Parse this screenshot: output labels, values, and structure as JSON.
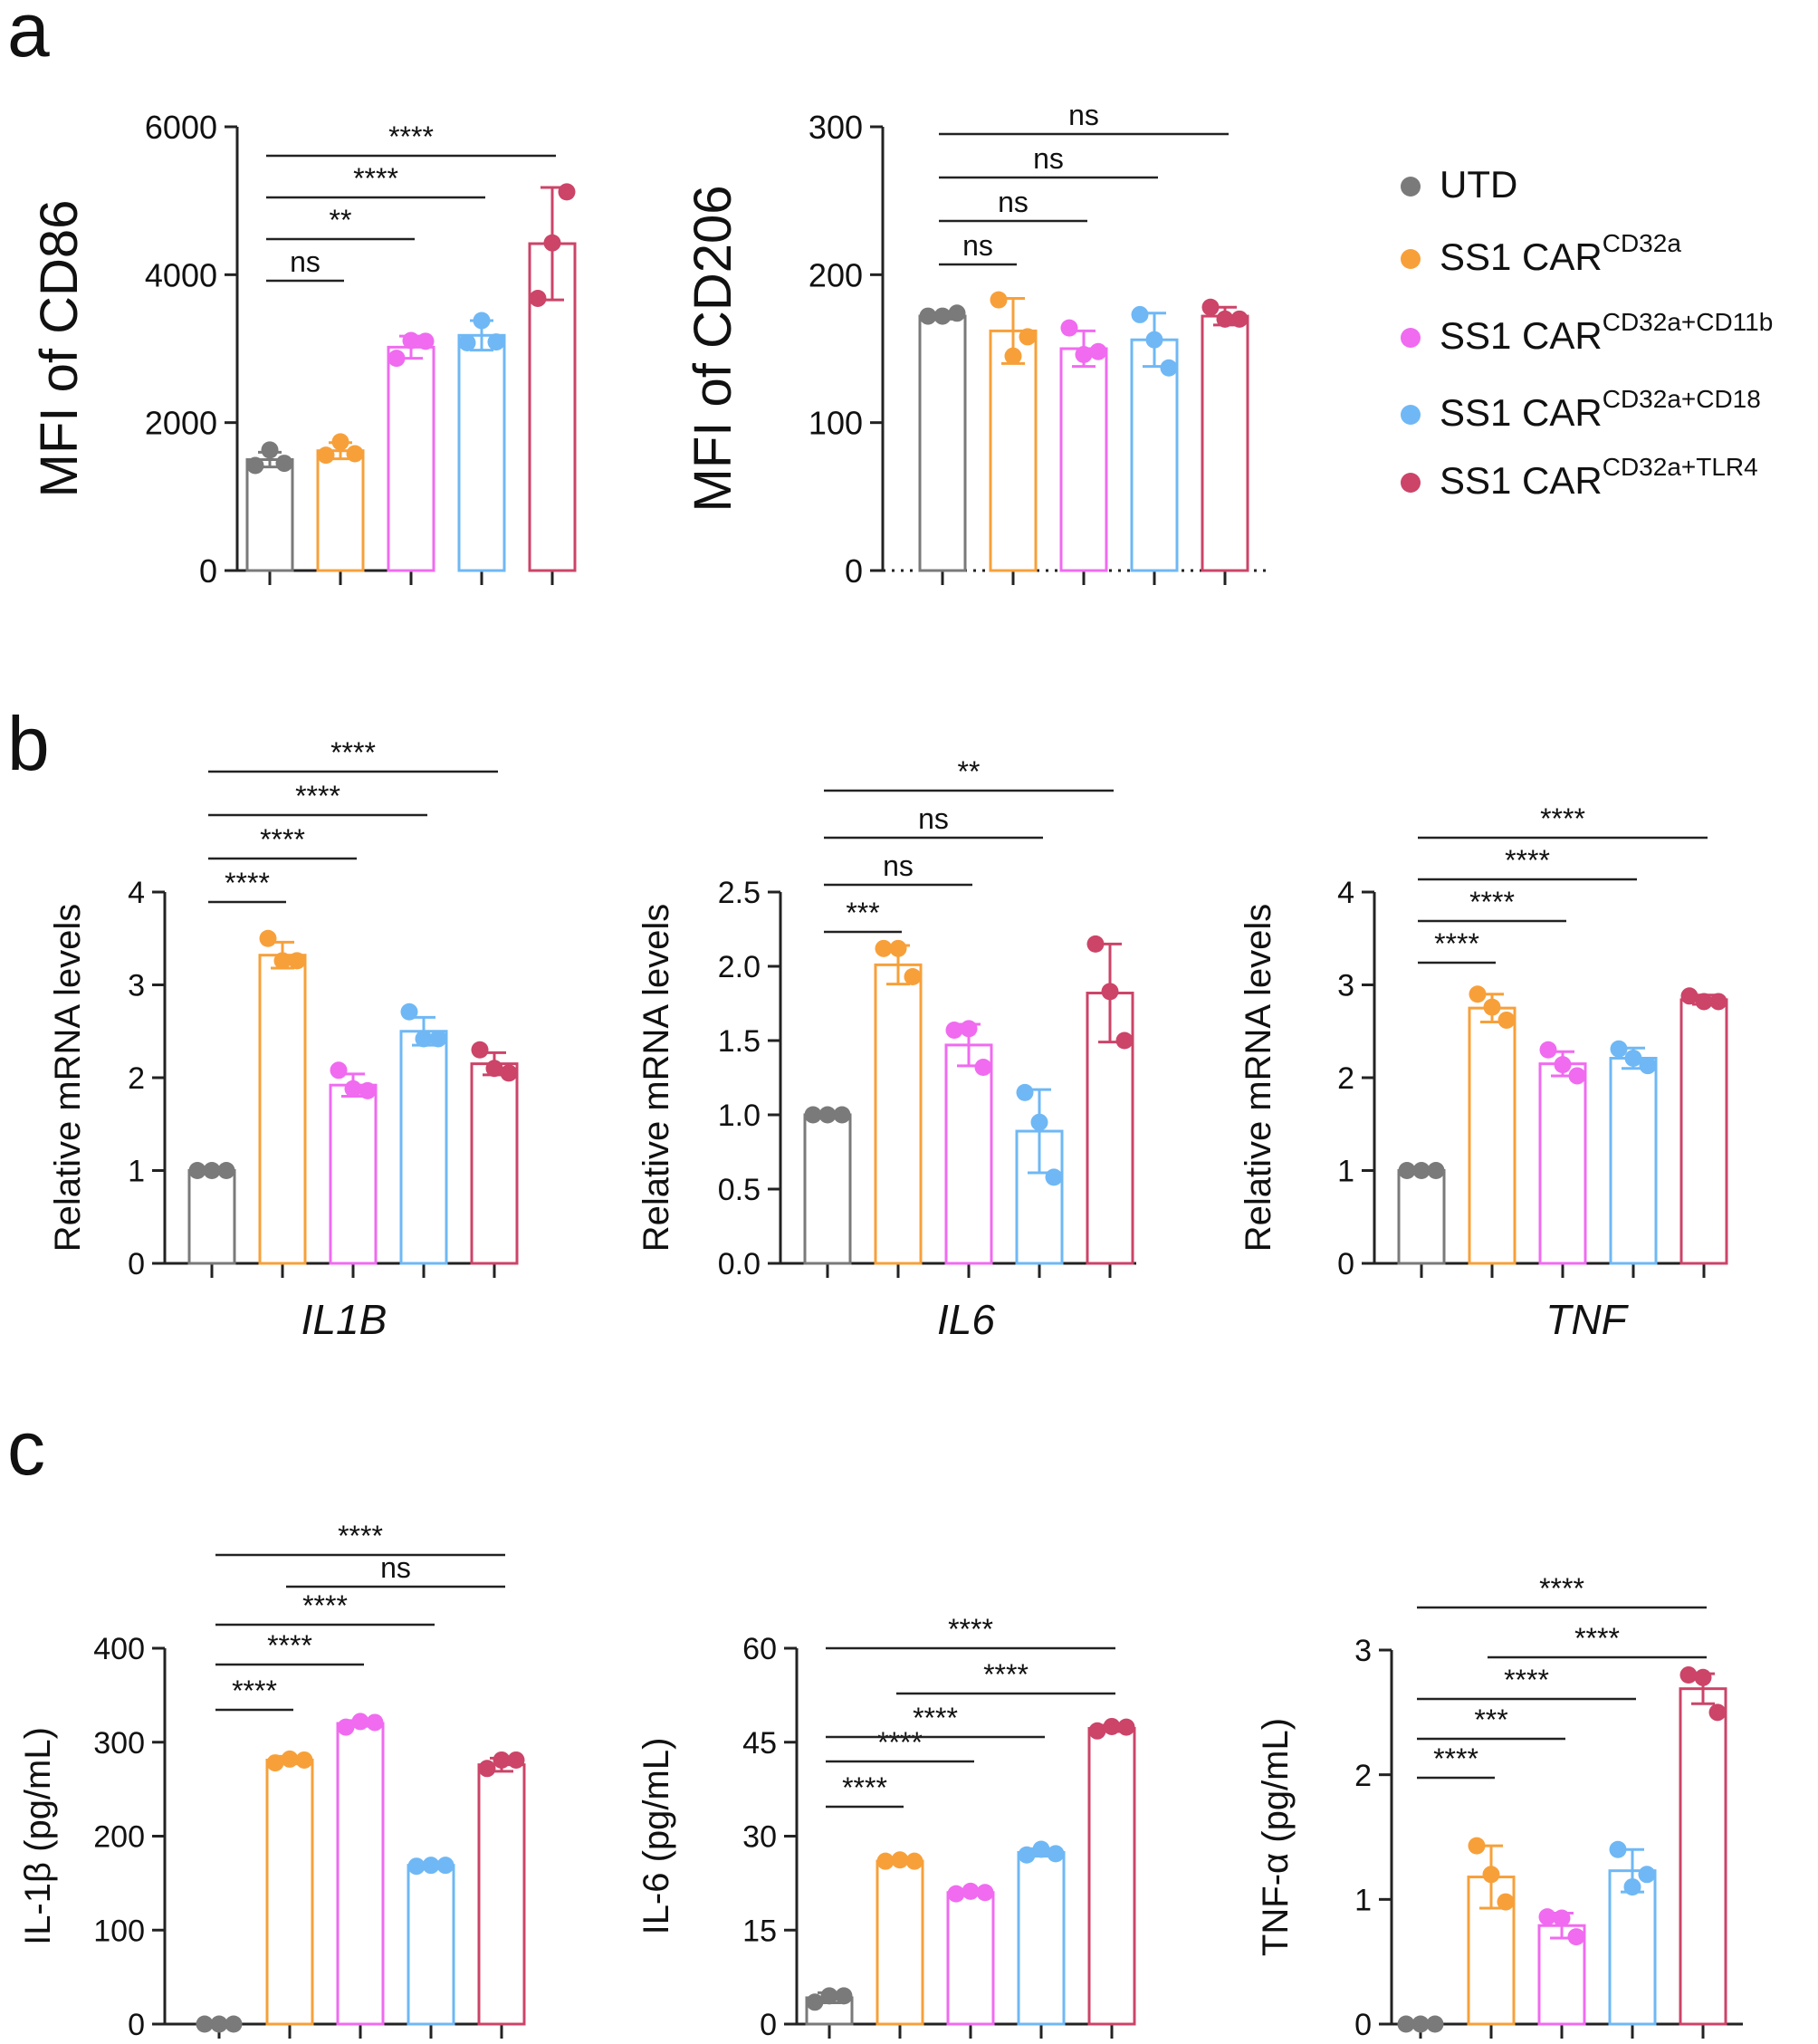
{
  "colors": {
    "UTD": "#7a7a7a",
    "CD32a": "#f7a03a",
    "CD32a+CD11b": "#f06bf0",
    "CD32a+CD18": "#6fb8f5",
    "CD32a+TLR4": "#cc4468"
  },
  "panel_labels": {
    "a": "a",
    "b": "b",
    "c": "c"
  },
  "legend": {
    "items": [
      {
        "key": "UTD",
        "base": "UTD",
        "sup": ""
      },
      {
        "key": "CD32a",
        "base": "SS1 CAR",
        "sup": "CD32a"
      },
      {
        "key": "CD32a+CD11b",
        "base": "SS1 CAR",
        "sup": "CD32a+CD11b"
      },
      {
        "key": "CD32a+CD18",
        "base": "SS1 CAR",
        "sup": "CD32a+CD18"
      },
      {
        "key": "CD32a+TLR4",
        "base": "SS1 CAR",
        "sup": "CD32a+TLR4"
      }
    ]
  },
  "chart_data": [
    {
      "id": "a1",
      "type": "bar",
      "categories": [
        "UTD",
        "CD32a",
        "CD32a+CD11b",
        "CD32a+CD18",
        "CD32a+TLR4"
      ],
      "values": [
        1500,
        1620,
        3020,
        3180,
        4420
      ],
      "errors": [
        100,
        110,
        150,
        200,
        760
      ],
      "points": [
        [
          1420,
          1630,
          1450
        ],
        [
          1560,
          1740,
          1580
        ],
        [
          2870,
          3110,
          3100
        ],
        [
          3080,
          3380,
          3090
        ],
        [
          3680,
          4430,
          5120
        ]
      ],
      "ylabel": "MFI of CD86",
      "xlabel": "",
      "ylim": [
        0,
        6000
      ],
      "yticks": [
        0,
        2000,
        4000,
        6000
      ],
      "yticklabels": [
        "0",
        "2000",
        "4000",
        "6000"
      ],
      "significance": [
        {
          "from": 0,
          "to": 1,
          "label": "ns"
        },
        {
          "from": 0,
          "to": 2,
          "label": "**"
        },
        {
          "from": 0,
          "to": 3,
          "label": "****"
        },
        {
          "from": 0,
          "to": 4,
          "label": "****"
        }
      ]
    },
    {
      "id": "a2",
      "type": "bar",
      "categories": [
        "UTD",
        "CD32a",
        "CD32a+CD11b",
        "CD32a+CD18",
        "CD32a+TLR4"
      ],
      "values": [
        172,
        162,
        150,
        156,
        172
      ],
      "errors": [
        2,
        22,
        12,
        18,
        6
      ],
      "points": [
        [
          172,
          172,
          174
        ],
        [
          183,
          145,
          158
        ],
        [
          164,
          146,
          148
        ],
        [
          173,
          156,
          137
        ],
        [
          178,
          170,
          170
        ]
      ],
      "ylabel": "MFI of CD206",
      "xlabel": "",
      "ylim": [
        0,
        300
      ],
      "yticks": [
        0,
        100,
        200,
        300
      ],
      "yticklabels": [
        "0",
        "100",
        "200",
        "300"
      ],
      "significance": [
        {
          "from": 0,
          "to": 1,
          "label": "ns"
        },
        {
          "from": 0,
          "to": 2,
          "label": "ns"
        },
        {
          "from": 0,
          "to": 3,
          "label": "ns"
        },
        {
          "from": 0,
          "to": 4,
          "label": "ns"
        }
      ]
    },
    {
      "id": "b1",
      "type": "bar",
      "categories": [
        "UTD",
        "CD32a",
        "CD32a+CD11b",
        "CD32a+CD18",
        "CD32a+TLR4"
      ],
      "values": [
        1.0,
        3.32,
        1.92,
        2.5,
        2.15
      ],
      "errors": [
        0,
        0.14,
        0.12,
        0.15,
        0.12
      ],
      "points": [
        [
          1.0,
          1.0,
          1.0
        ],
        [
          3.5,
          3.26,
          3.26
        ],
        [
          2.08,
          1.88,
          1.86
        ],
        [
          2.71,
          2.42,
          2.42
        ],
        [
          2.3,
          2.1,
          2.05
        ]
      ],
      "ylabel": "Relative mRNA levels",
      "xlabel": "IL1B",
      "ylim": [
        0,
        4
      ],
      "yticks": [
        0,
        1,
        2,
        3,
        4
      ],
      "yticklabels": [
        "0",
        "1",
        "2",
        "3",
        "4"
      ],
      "significance": [
        {
          "from": 0,
          "to": 1,
          "label": "****"
        },
        {
          "from": 0,
          "to": 2,
          "label": "****"
        },
        {
          "from": 0,
          "to": 3,
          "label": "****"
        },
        {
          "from": 0,
          "to": 4,
          "label": "****"
        }
      ]
    },
    {
      "id": "b2",
      "type": "bar",
      "categories": [
        "UTD",
        "CD32a",
        "CD32a+CD11b",
        "CD32a+CD18",
        "CD32a+TLR4"
      ],
      "values": [
        1.0,
        2.01,
        1.47,
        0.89,
        1.82
      ],
      "errors": [
        0,
        0.13,
        0.14,
        0.28,
        0.33
      ],
      "points": [
        [
          1.0,
          1.0,
          1.0
        ],
        [
          2.12,
          2.12,
          1.93
        ],
        [
          1.57,
          1.58,
          1.32
        ],
        [
          1.15,
          0.95,
          0.58
        ],
        [
          2.15,
          1.83,
          1.5
        ]
      ],
      "ylabel": "Relative mRNA levels",
      "xlabel": "IL6",
      "ylim": [
        0,
        2.5
      ],
      "yticks": [
        0,
        0.5,
        1.0,
        1.5,
        2.0,
        2.5
      ],
      "yticklabels": [
        "0.0",
        "0.5",
        "1.0",
        "1.5",
        "2.0",
        "2.5"
      ],
      "significance": [
        {
          "from": 0,
          "to": 1,
          "label": "***"
        },
        {
          "from": 0,
          "to": 2,
          "label": "ns"
        },
        {
          "from": 0,
          "to": 3,
          "label": "ns"
        },
        {
          "from": 0,
          "to": 4,
          "label": "**"
        }
      ]
    },
    {
      "id": "b3",
      "type": "bar",
      "categories": [
        "UTD",
        "CD32a",
        "CD32a+CD11b",
        "CD32a+CD18",
        "CD32a+TLR4"
      ],
      "values": [
        1.0,
        2.75,
        2.15,
        2.21,
        2.84
      ],
      "errors": [
        0,
        0.15,
        0.13,
        0.11,
        0.05
      ],
      "points": [
        [
          1.0,
          1.0,
          1.0
        ],
        [
          2.9,
          2.76,
          2.62
        ],
        [
          2.3,
          2.14,
          2.02
        ],
        [
          2.31,
          2.21,
          2.13
        ],
        [
          2.88,
          2.82,
          2.82
        ]
      ],
      "ylabel": "Relative mRNA levels",
      "xlabel": "TNF",
      "ylim": [
        0,
        4
      ],
      "yticks": [
        0,
        1,
        2,
        3,
        4
      ],
      "yticklabels": [
        "0",
        "1",
        "2",
        "3",
        "4"
      ],
      "significance": [
        {
          "from": 0,
          "to": 1,
          "label": "****"
        },
        {
          "from": 0,
          "to": 2,
          "label": "****"
        },
        {
          "from": 0,
          "to": 3,
          "label": "****"
        },
        {
          "from": 0,
          "to": 4,
          "label": "****"
        }
      ]
    },
    {
      "id": "c1",
      "type": "bar",
      "categories": [
        "UTD",
        "CD32a",
        "CD32a+CD11b",
        "CD32a+CD18",
        "CD32a+TLR4"
      ],
      "values": [
        0,
        281,
        320,
        169,
        276
      ],
      "errors": [
        0,
        4,
        3,
        2,
        7
      ],
      "points": [
        [
          0,
          0,
          0
        ],
        [
          278,
          282,
          281
        ],
        [
          316,
          322,
          321
        ],
        [
          168,
          169,
          169
        ],
        [
          272,
          281,
          281
        ]
      ],
      "ylabel": "IL-1β (pg/mL)",
      "xlabel": "",
      "ylim": [
        0,
        400
      ],
      "yticks": [
        0,
        100,
        200,
        300,
        400
      ],
      "yticklabels": [
        "0",
        "100",
        "200",
        "300",
        "400"
      ],
      "significance": [
        {
          "from": 0,
          "to": 1,
          "label": "****"
        },
        {
          "from": 0,
          "to": 2,
          "label": "****"
        },
        {
          "from": 0,
          "to": 3,
          "label": "****"
        },
        {
          "from": 1,
          "to": 4,
          "label": "ns"
        },
        {
          "from": 0,
          "to": 4,
          "label": "****"
        }
      ]
    },
    {
      "id": "c2",
      "type": "bar",
      "categories": [
        "UTD",
        "CD32a",
        "CD32a+CD11b",
        "CD32a+CD18",
        "CD32a+TLR4"
      ],
      "values": [
        4.2,
        26.0,
        21.0,
        27.4,
        47.2
      ],
      "errors": [
        0.8,
        0.3,
        0.3,
        0.6,
        0.5
      ],
      "points": [
        [
          3.5,
          4.5,
          4.5
        ],
        [
          26.0,
          26.2,
          26.0
        ],
        [
          20.8,
          21.2,
          21.0
        ],
        [
          27.0,
          27.9,
          27.2
        ],
        [
          46.8,
          47.5,
          47.4
        ]
      ],
      "ylabel": "IL-6 (pg/mL)",
      "xlabel": "",
      "ylim": [
        0,
        60
      ],
      "yticks": [
        0,
        15,
        30,
        45,
        60
      ],
      "yticklabels": [
        "0",
        "15",
        "30",
        "45",
        "60"
      ],
      "significance": [
        {
          "from": 0,
          "to": 1,
          "label": "****"
        },
        {
          "from": 0,
          "to": 2,
          "label": "****"
        },
        {
          "from": 0,
          "to": 3,
          "label": "****"
        },
        {
          "from": 1,
          "to": 4,
          "label": "****"
        },
        {
          "from": 0,
          "to": 4,
          "label": "****"
        }
      ]
    },
    {
      "id": "c3",
      "type": "bar",
      "categories": [
        "UTD",
        "CD32a",
        "CD32a+CD11b",
        "CD32a+CD18",
        "CD32a+TLR4"
      ],
      "values": [
        0,
        1.18,
        0.79,
        1.23,
        2.69
      ],
      "errors": [
        0,
        0.25,
        0.1,
        0.17,
        0.12
      ],
      "points": [
        [
          0,
          0,
          0
        ],
        [
          1.43,
          1.2,
          0.98
        ],
        [
          0.86,
          0.85,
          0.7
        ],
        [
          1.4,
          1.1,
          1.2
        ],
        [
          2.8,
          2.78,
          2.5
        ]
      ],
      "ylabel": "TNF-α (pg/mL)",
      "xlabel": "",
      "ylim": [
        0,
        3
      ],
      "yticks": [
        0,
        1,
        2,
        3
      ],
      "yticklabels": [
        "0",
        "1",
        "2",
        "3"
      ],
      "significance": [
        {
          "from": 0,
          "to": 1,
          "label": "****"
        },
        {
          "from": 0,
          "to": 2,
          "label": "***"
        },
        {
          "from": 0,
          "to": 3,
          "label": "****"
        },
        {
          "from": 1,
          "to": 4,
          "label": "****"
        },
        {
          "from": 0,
          "to": 4,
          "label": "****"
        }
      ]
    }
  ]
}
